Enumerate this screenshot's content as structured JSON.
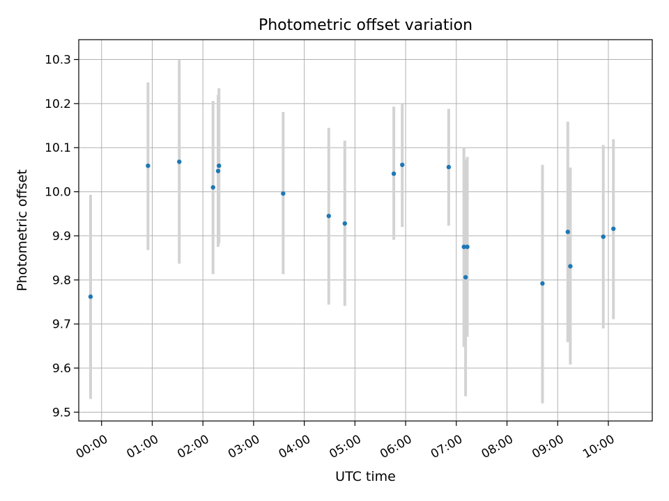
{
  "chart_data": {
    "type": "scatter",
    "title": "Photometric offset variation",
    "xlabel": "UTC time",
    "ylabel": "Photometric offset",
    "x_unit": "UTC time (HH:MM)",
    "xlim": [
      "23:33",
      "10:52"
    ],
    "ylim": [
      9.48,
      10.345
    ],
    "x_ticks": [
      "00:00",
      "01:00",
      "02:00",
      "03:00",
      "04:00",
      "05:00",
      "06:00",
      "07:00",
      "08:00",
      "09:00",
      "10:00"
    ],
    "y_ticks": [
      9.5,
      9.6,
      9.7,
      9.8,
      9.9,
      10.0,
      10.1,
      10.2,
      10.3
    ],
    "y_tick_labels": [
      "9.5",
      "9.6",
      "9.7",
      "9.8",
      "9.9",
      "10.0",
      "10.1",
      "10.2",
      "10.3"
    ],
    "grid": true,
    "point_color": "#1f77b4",
    "errorbar_color": "#d3d3d3",
    "points": [
      {
        "t": "23:47",
        "y": 9.762,
        "ylow": 9.53,
        "yhigh": 9.993
      },
      {
        "t": "00:55",
        "y": 10.059,
        "ylow": 9.868,
        "yhigh": 10.248
      },
      {
        "t": "01:32",
        "y": 10.068,
        "ylow": 9.837,
        "yhigh": 10.299
      },
      {
        "t": "02:12",
        "y": 10.01,
        "ylow": 9.813,
        "yhigh": 10.206
      },
      {
        "t": "02:18",
        "y": 10.047,
        "ylow": 9.875,
        "yhigh": 10.22
      },
      {
        "t": "02:19",
        "y": 10.059,
        "ylow": 9.883,
        "yhigh": 10.235
      },
      {
        "t": "03:35",
        "y": 9.996,
        "ylow": 9.813,
        "yhigh": 10.181
      },
      {
        "t": "04:29",
        "y": 9.945,
        "ylow": 9.744,
        "yhigh": 10.145
      },
      {
        "t": "04:48",
        "y": 9.928,
        "ylow": 9.741,
        "yhigh": 10.116
      },
      {
        "t": "05:46",
        "y": 10.041,
        "ylow": 9.891,
        "yhigh": 10.193
      },
      {
        "t": "05:56",
        "y": 10.061,
        "ylow": 9.92,
        "yhigh": 10.2
      },
      {
        "t": "06:51",
        "y": 10.056,
        "ylow": 9.923,
        "yhigh": 10.188
      },
      {
        "t": "07:09",
        "y": 9.875,
        "ylow": 9.648,
        "yhigh": 10.1
      },
      {
        "t": "07:11",
        "y": 9.806,
        "ylow": 9.536,
        "yhigh": 10.073
      },
      {
        "t": "07:13",
        "y": 9.875,
        "ylow": 9.671,
        "yhigh": 10.079
      },
      {
        "t": "08:42",
        "y": 9.792,
        "ylow": 9.52,
        "yhigh": 10.061
      },
      {
        "t": "09:12",
        "y": 9.909,
        "ylow": 9.659,
        "yhigh": 10.159
      },
      {
        "t": "09:15",
        "y": 9.831,
        "ylow": 9.608,
        "yhigh": 10.055
      },
      {
        "t": "09:54",
        "y": 9.898,
        "ylow": 9.69,
        "yhigh": 10.106
      },
      {
        "t": "10:06",
        "y": 9.916,
        "ylow": 9.711,
        "yhigh": 10.119
      }
    ]
  }
}
